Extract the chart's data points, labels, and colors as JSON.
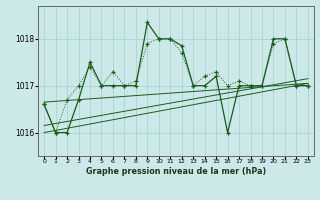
{
  "title": "Graphe pression niveau de la mer (hPa)",
  "bg_color": "#cce8e8",
  "grid_color": "#aad4d4",
  "line_color": "#1a5c1a",
  "xlim": [
    -0.5,
    23.5
  ],
  "ylim": [
    1015.5,
    1018.7
  ],
  "yticks": [
    1016,
    1017,
    1018
  ],
  "xticks": [
    0,
    1,
    2,
    3,
    4,
    5,
    6,
    7,
    8,
    9,
    10,
    11,
    12,
    13,
    14,
    15,
    16,
    17,
    18,
    19,
    20,
    21,
    22,
    23
  ],
  "main_x": [
    0,
    1,
    2,
    3,
    4,
    5,
    6,
    7,
    8,
    9,
    10,
    11,
    12,
    13,
    14,
    15,
    16,
    17,
    18,
    19,
    20,
    21,
    22,
    23
  ],
  "main_y": [
    1016.6,
    1016.0,
    1016.0,
    1016.7,
    1017.5,
    1017.0,
    1017.0,
    1017.0,
    1017.0,
    1018.35,
    1018.0,
    1018.0,
    1017.85,
    1017.0,
    1017.0,
    1017.2,
    1016.0,
    1017.0,
    1017.0,
    1017.0,
    1018.0,
    1018.0,
    1017.0,
    1017.0
  ],
  "dot_x": [
    0,
    1,
    2,
    3,
    4,
    5,
    6,
    7,
    8,
    9,
    10,
    11,
    12,
    13,
    14,
    15,
    16,
    17,
    18,
    19,
    20,
    21,
    22,
    23
  ],
  "dot_y": [
    1016.6,
    1016.0,
    1016.7,
    1017.0,
    1017.4,
    1017.0,
    1017.3,
    1017.0,
    1017.1,
    1017.9,
    1018.0,
    1018.0,
    1017.7,
    1017.0,
    1017.2,
    1017.3,
    1017.0,
    1017.1,
    1017.0,
    1017.0,
    1017.9,
    1018.0,
    1017.0,
    1017.0
  ],
  "trend1_x": [
    0,
    23
  ],
  "trend1_y": [
    1016.0,
    1017.05
  ],
  "trend2_x": [
    0,
    23
  ],
  "trend2_y": [
    1016.15,
    1017.15
  ],
  "trend3_x": [
    0,
    23
  ],
  "trend3_y": [
    1016.65,
    1017.05
  ]
}
